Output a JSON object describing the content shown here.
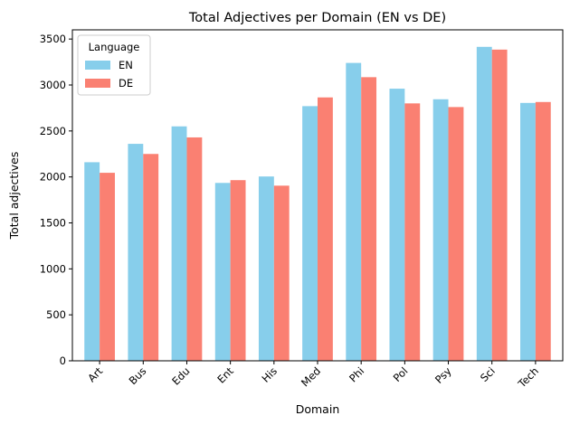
{
  "chart_data": {
    "type": "bar",
    "title": "Total Adjectives per Domain (EN vs DE)",
    "xlabel": "Domain",
    "ylabel": "Total adjectives",
    "categories": [
      "Art",
      "Bus",
      "Edu",
      "Ent",
      "His",
      "Med",
      "Phi",
      "Pol",
      "Psy",
      "Sci",
      "Tech"
    ],
    "series": [
      {
        "name": "EN",
        "color": "#87ceeb",
        "values": [
          2160,
          2360,
          2550,
          1935,
          2005,
          2770,
          3240,
          2960,
          2845,
          3415,
          2805
        ]
      },
      {
        "name": "DE",
        "color": "#fa8072",
        "values": [
          2045,
          2250,
          2430,
          1965,
          1905,
          2865,
          3085,
          2800,
          2760,
          3385,
          2815
        ]
      }
    ],
    "ylim": [
      0,
      3600
    ],
    "yticks": [
      0,
      500,
      1000,
      1500,
      2000,
      2500,
      3000,
      3500
    ],
    "grid": false,
    "legend": {
      "title": "Language",
      "position": "top-left"
    }
  }
}
